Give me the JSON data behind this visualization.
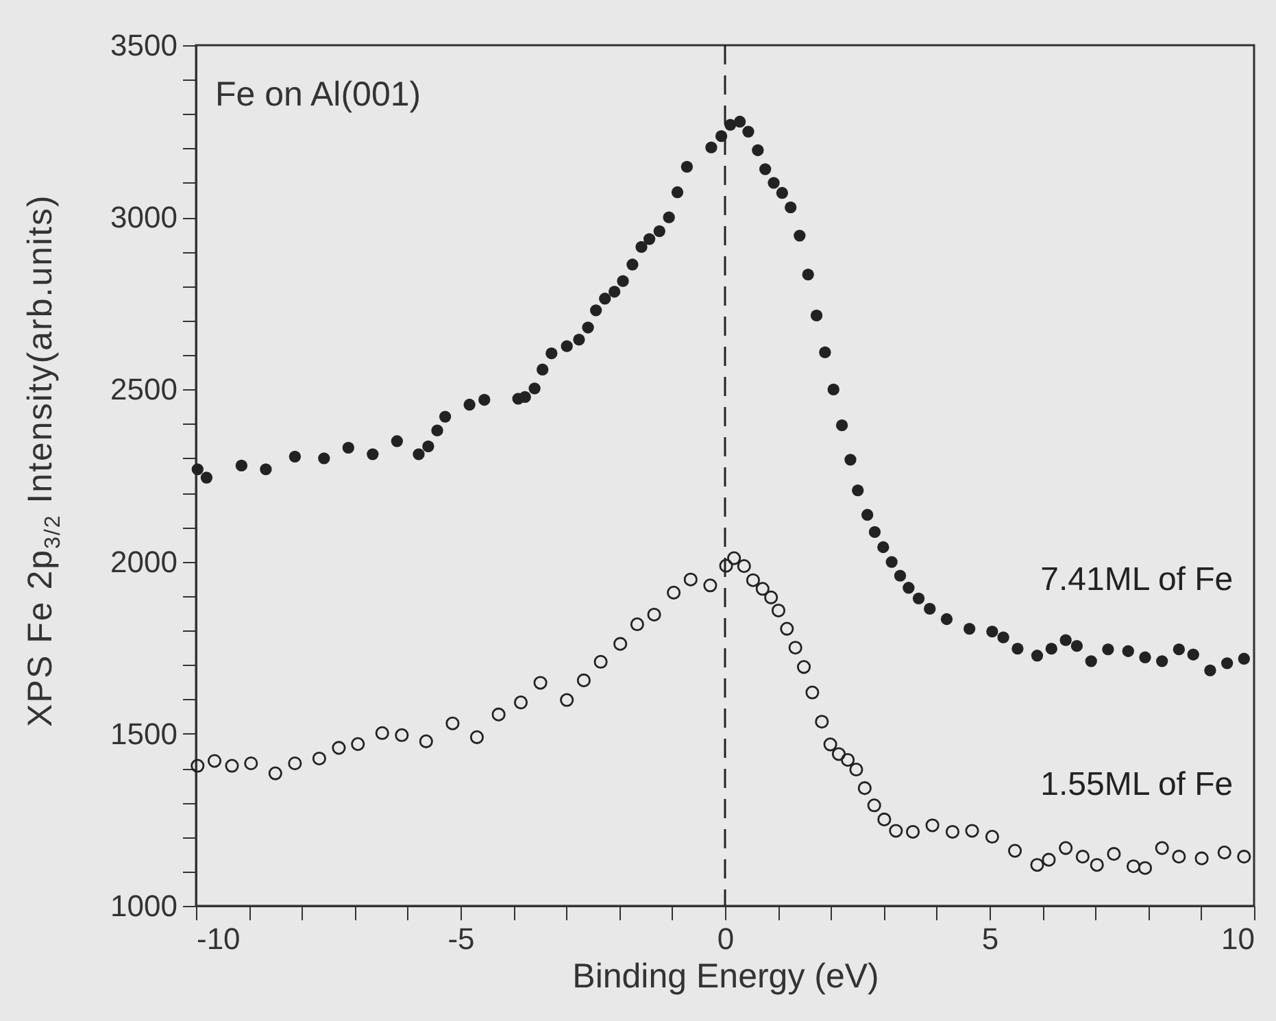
{
  "chart_data": {
    "type": "scatter",
    "xlabel": "Binding Energy (eV)",
    "ylabel": "XPS Fe 2p$_{3/2}$ Intensity(arb.units)",
    "annotations": [
      "Fe on Al(001)"
    ],
    "xlim": [
      -10,
      10
    ],
    "xticks": [
      -10,
      {
        "value": -9,
        "label": null
      },
      {
        "value": -8,
        "label": null
      },
      {
        "value": -7,
        "label": null
      },
      {
        "value": -6,
        "label": null
      },
      -5,
      {
        "value": -4,
        "label": null
      },
      {
        "value": -3,
        "label": null
      },
      {
        "value": -2,
        "label": null
      },
      {
        "value": -1,
        "label": null
      },
      0,
      {
        "value": 1,
        "label": null
      },
      {
        "value": 2,
        "label": null
      },
      {
        "value": 3,
        "label": null
      },
      {
        "value": 4,
        "label": null
      },
      5,
      {
        "value": 6,
        "label": null
      },
      {
        "value": 7,
        "label": null
      },
      {
        "value": 8,
        "label": null
      },
      {
        "value": 9,
        "label": null
      },
      10
    ],
    "ylim": [
      1000,
      3500
    ],
    "yticks": [
      1000,
      {
        "value": 1100,
        "label": null
      },
      {
        "value": 1200,
        "label": null
      },
      {
        "value": 1300,
        "label": null
      },
      {
        "value": 1400,
        "label": null
      },
      1500,
      {
        "value": 1600,
        "label": null
      },
      {
        "value": 1700,
        "label": null
      },
      {
        "value": 1800,
        "label": null
      },
      {
        "value": 1900,
        "label": null
      },
      2000,
      {
        "value": 2100,
        "label": null
      },
      {
        "value": 2200,
        "label": null
      },
      {
        "value": 2300,
        "label": null
      },
      {
        "value": 2400,
        "label": null
      },
      2500,
      {
        "value": 2600,
        "label": null
      },
      {
        "value": 2700,
        "label": null
      },
      {
        "value": 2800,
        "label": null
      },
      {
        "value": 2900,
        "label": null
      },
      3000,
      {
        "value": 3100,
        "label": null
      },
      {
        "value": 3200,
        "label": null
      },
      {
        "value": 3300,
        "label": null
      },
      {
        "value": 3400,
        "label": null
      },
      3500
    ],
    "marker": "circle",
    "ref_lines": [
      {
        "axis": "x",
        "value": 0,
        "line_style": "dashed",
        "color": "#222222"
      }
    ],
    "series": [
      {
        "name": "7.41ML of Fe",
        "color": "#222222",
        "x": [
          -9.97,
          -9.8,
          -9.14,
          -8.68,
          -8.13,
          -7.58,
          -7.12,
          -6.66,
          -6.2,
          -5.79,
          -5.61,
          -5.44,
          -5.29,
          -4.83,
          -4.55,
          -3.91,
          -3.78,
          -3.6,
          -3.45,
          -3.28,
          -2.99,
          -2.76,
          -2.59,
          -2.44,
          -2.27,
          -2.09,
          -1.93,
          -1.75,
          -1.58,
          -1.43,
          -1.24,
          -1.06,
          -0.9,
          -0.72,
          -0.26,
          -0.07,
          0.1,
          0.28,
          0.44,
          0.62,
          0.76,
          0.92,
          1.08,
          1.24,
          1.41,
          1.57,
          1.73,
          1.89,
          2.05,
          2.21,
          2.37,
          2.51,
          2.69,
          2.83,
          2.99,
          3.15,
          3.31,
          3.47,
          3.66,
          3.87,
          4.19,
          4.62,
          5.05,
          5.26,
          5.53,
          5.9,
          6.17,
          6.44,
          6.65,
          6.92,
          7.24,
          7.62,
          7.94,
          8.26,
          8.58,
          8.85,
          9.17,
          9.49,
          9.81
        ],
        "values": [
          2268,
          2244,
          2279,
          2268,
          2305,
          2300,
          2331,
          2312,
          2350,
          2312,
          2335,
          2381,
          2421,
          2456,
          2470,
          2473,
          2478,
          2503,
          2558,
          2605,
          2626,
          2645,
          2680,
          2730,
          2764,
          2784,
          2815,
          2863,
          2914,
          2937,
          2960,
          3000,
          3073,
          3147,
          3203,
          3236,
          3269,
          3278,
          3249,
          3195,
          3140,
          3100,
          3071,
          3029,
          2947,
          2834,
          2715,
          2608,
          2500,
          2396,
          2296,
          2207,
          2136,
          2086,
          2042,
          1999,
          1959,
          1924,
          1893,
          1863,
          1833,
          1805,
          1797,
          1780,
          1747,
          1727,
          1747,
          1772,
          1755,
          1711,
          1745,
          1740,
          1722,
          1711,
          1745,
          1730,
          1684,
          1705,
          1718
        ]
      },
      {
        "name": "1.55ML of Fe",
        "color": "#222222",
        "x": [
          -9.97,
          -9.65,
          -9.32,
          -8.96,
          -8.5,
          -8.13,
          -7.67,
          -7.3,
          -6.94,
          -6.48,
          -6.11,
          -5.65,
          -5.15,
          -4.69,
          -4.28,
          -3.86,
          -3.49,
          -2.99,
          -2.67,
          -2.35,
          -1.98,
          -1.66,
          -1.34,
          -0.97,
          -0.65,
          -0.28,
          0.02,
          0.17,
          0.36,
          0.53,
          0.71,
          0.87,
          1.01,
          1.17,
          1.33,
          1.49,
          1.65,
          1.83,
          1.99,
          2.15,
          2.32,
          2.48,
          2.64,
          2.82,
          3.01,
          3.23,
          3.55,
          3.92,
          4.3,
          4.67,
          5.05,
          5.48,
          5.9,
          6.12,
          6.44,
          6.76,
          7.03,
          7.35,
          7.72,
          7.94,
          8.26,
          8.58,
          9.01,
          9.44,
          9.81
        ],
        "values": [
          1407,
          1421,
          1407,
          1414,
          1385,
          1414,
          1428,
          1459,
          1470,
          1502,
          1496,
          1478,
          1530,
          1490,
          1556,
          1591,
          1648,
          1598,
          1655,
          1709,
          1761,
          1818,
          1846,
          1910,
          1948,
          1931,
          1988,
          2010,
          1987,
          1946,
          1921,
          1896,
          1858,
          1805,
          1750,
          1694,
          1620,
          1535,
          1469,
          1441,
          1424,
          1396,
          1342,
          1292,
          1251,
          1218,
          1215,
          1234,
          1215,
          1218,
          1201,
          1160,
          1119,
          1134,
          1168,
          1143,
          1119,
          1151,
          1115,
          1110,
          1168,
          1143,
          1138,
          1155,
          1143
        ]
      }
    ]
  }
}
